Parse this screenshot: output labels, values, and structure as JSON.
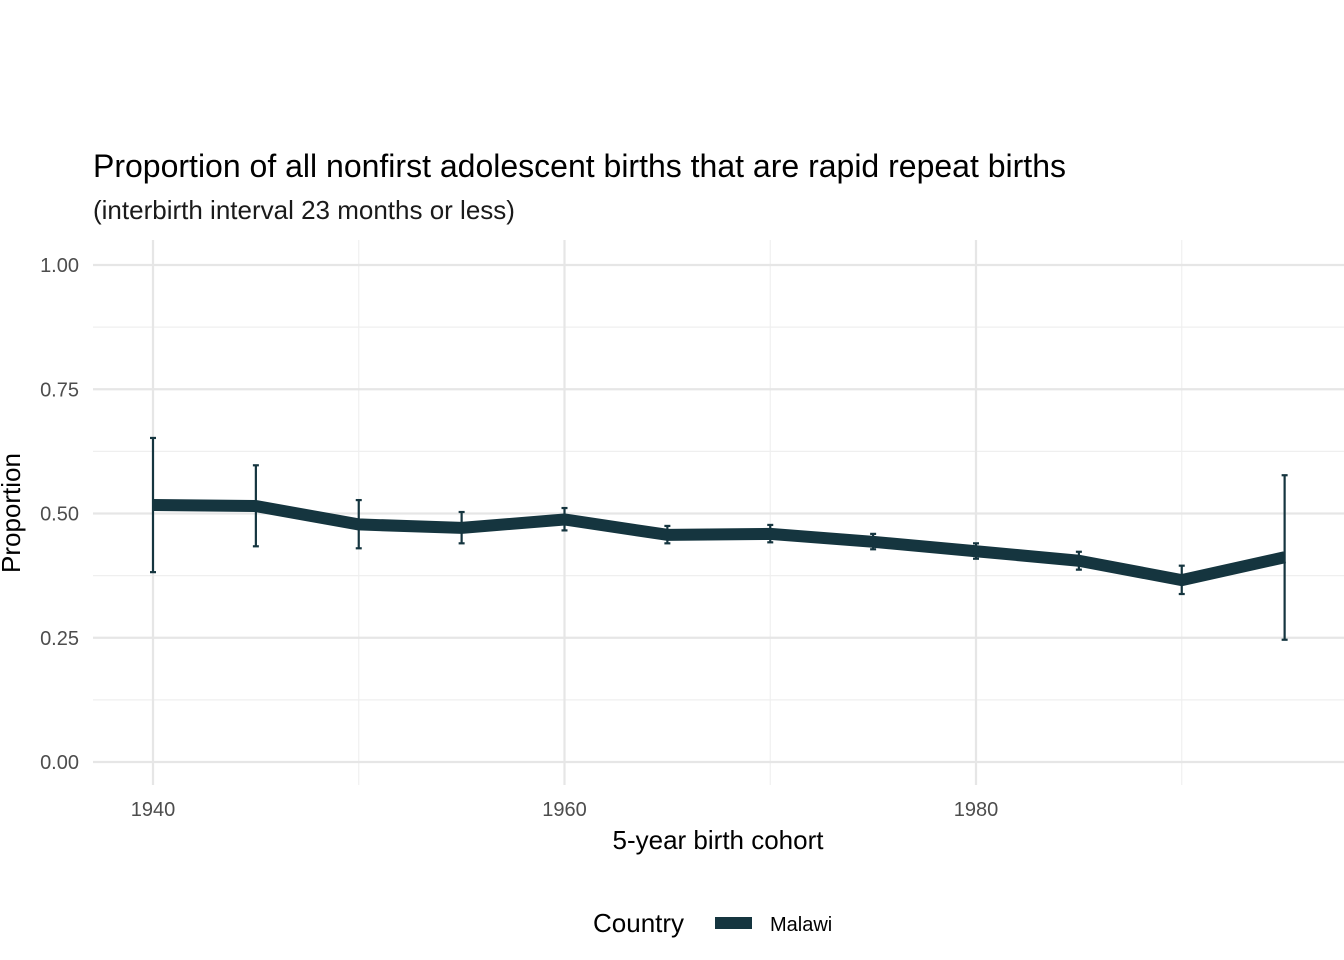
{
  "chart_data": {
    "type": "line",
    "title": "Proportion of all nonfirst adolescent births that are rapid repeat births",
    "subtitle": "(interbirth interval 23 months or less)",
    "xlabel": "5-year birth cohort",
    "ylabel": "Proportion",
    "xlim": [
      1937,
      1998
    ],
    "ylim": [
      0,
      1.0
    ],
    "x_ticks": [
      1940,
      1960,
      1980
    ],
    "y_ticks": [
      0.0,
      0.25,
      0.5,
      0.75,
      1.0
    ],
    "y_tick_labels": [
      "0.00",
      "0.25",
      "0.50",
      "0.75",
      "1.00"
    ],
    "grid": true,
    "legend": {
      "title": "Country",
      "position": "bottom"
    },
    "series": [
      {
        "name": "Malawi",
        "color": "#15353f",
        "x": [
          1940,
          1945,
          1950,
          1955,
          1960,
          1965,
          1970,
          1975,
          1980,
          1985,
          1990,
          1995
        ],
        "y": [
          0.517,
          0.515,
          0.478,
          0.471,
          0.488,
          0.457,
          0.459,
          0.443,
          0.424,
          0.405,
          0.366,
          0.412
        ],
        "lower": [
          0.382,
          0.434,
          0.43,
          0.44,
          0.466,
          0.44,
          0.442,
          0.428,
          0.409,
          0.387,
          0.338,
          0.246
        ],
        "upper": [
          0.652,
          0.597,
          0.527,
          0.503,
          0.511,
          0.475,
          0.477,
          0.459,
          0.44,
          0.423,
          0.395,
          0.577
        ]
      }
    ]
  }
}
